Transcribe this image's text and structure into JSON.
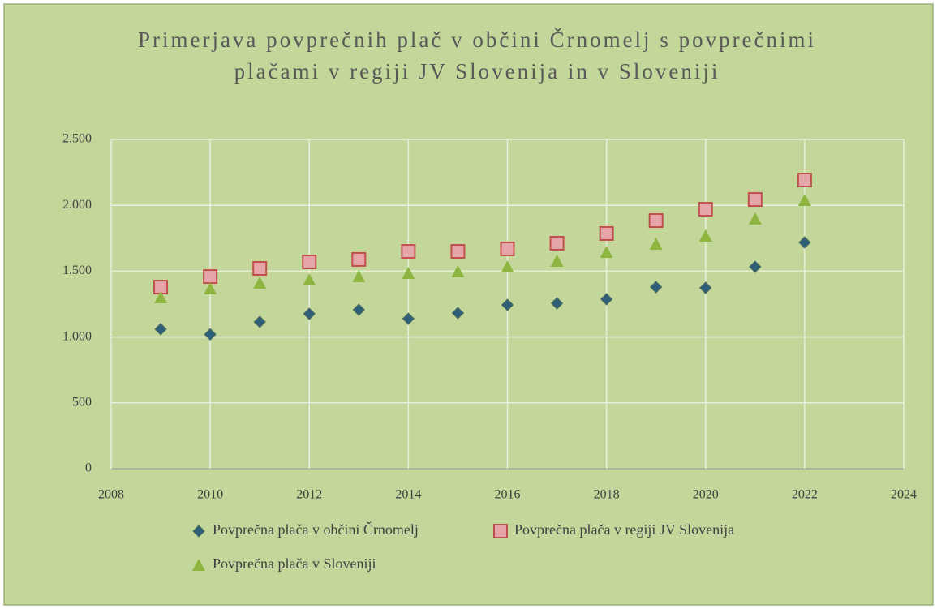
{
  "chart_data": {
    "type": "scatter",
    "title": [
      "Primerjava povprečnih plač v občini Črnomelj s povprečnimi",
      "plačami v regiji JV Slovenija in v Sloveniji"
    ],
    "x": [
      2009,
      2010,
      2011,
      2012,
      2013,
      2014,
      2015,
      2016,
      2017,
      2018,
      2019,
      2020,
      2021,
      2022
    ],
    "series": [
      {
        "name": "Povprečna plača v občini Črnomelj",
        "color": "#2f5f78",
        "marker": "diamond",
        "values": [
          1060,
          1020,
          1115,
          1176,
          1207,
          1139,
          1182,
          1244,
          1256,
          1287,
          1379,
          1373,
          1533,
          1718
        ]
      },
      {
        "name": "Povprečna plača v regiji JV Slovenija",
        "color": "#e6a5a8",
        "marker": "square",
        "values": [
          1379,
          1459,
          1521,
          1570,
          1589,
          1650,
          1650,
          1669,
          1712,
          1786,
          1884,
          1970,
          2044,
          2192
        ]
      },
      {
        "name": "Povprečna plača v Sloveniji",
        "color": "#8db53f",
        "marker": "triangle",
        "values": [
          1299,
          1367,
          1410,
          1435,
          1459,
          1484,
          1496,
          1533,
          1576,
          1644,
          1706,
          1767,
          1897,
          2038
        ]
      }
    ],
    "xlim": [
      2008,
      2024
    ],
    "xticks": [
      2008,
      2010,
      2012,
      2014,
      2016,
      2018,
      2020,
      2022,
      2024
    ],
    "ylim": [
      0,
      2500
    ],
    "yticks": [
      0,
      500,
      {
        "value": 1000,
        "label": "1.000"
      },
      {
        "value": 1500,
        "label": "1.500"
      },
      {
        "value": 2000,
        "label": "2.000"
      },
      {
        "value": 2500,
        "label": "2.500"
      }
    ],
    "grid": true,
    "legend": "bottom"
  }
}
